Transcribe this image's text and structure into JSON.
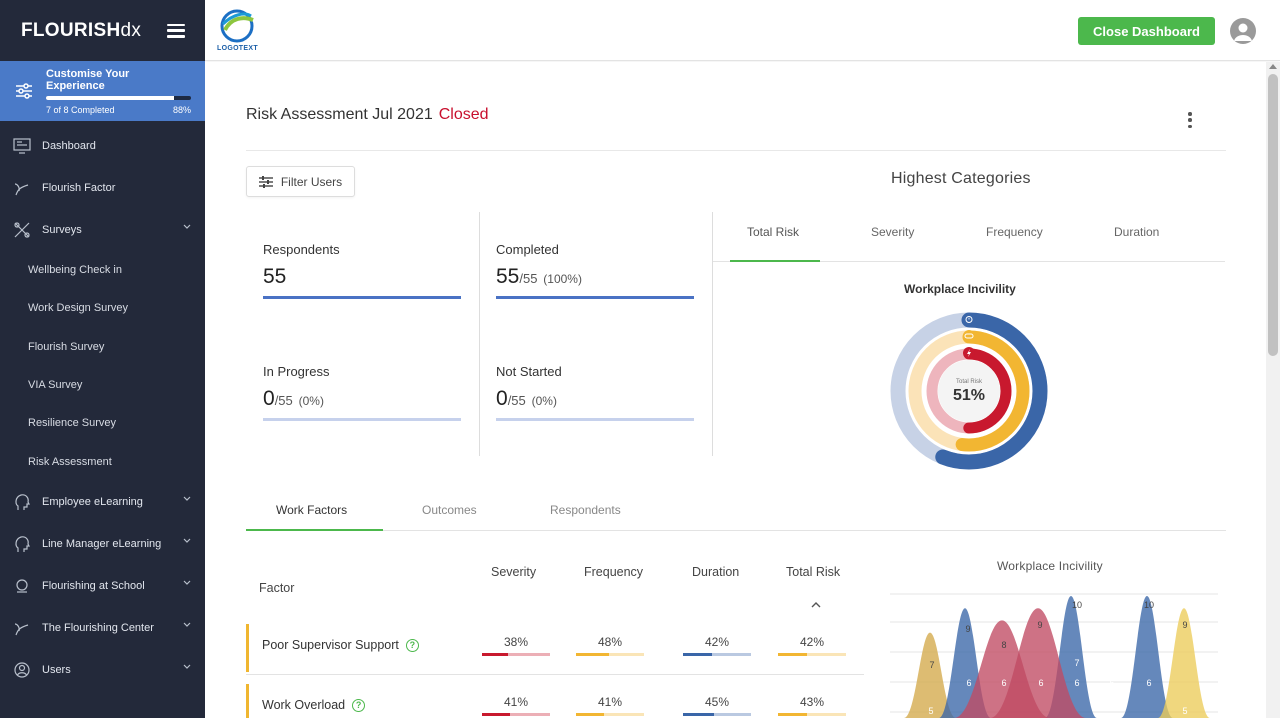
{
  "brand": {
    "bold": "FLOURISH",
    "thin": "dx"
  },
  "customise": {
    "title": "Customise Your Experience",
    "progress_text": "7 of 8 Completed",
    "percent_text": "88%",
    "progress": 0.88
  },
  "sidebar": {
    "items": [
      {
        "label": "Dashboard",
        "icon": "dashboard-icon"
      },
      {
        "label": "Flourish Factor",
        "icon": "flourish-factor-icon"
      },
      {
        "label": "Surveys",
        "icon": "surveys-icon"
      }
    ],
    "survey_subitems": [
      "Wellbeing Check in",
      "Work Design Survey",
      "Flourish Survey",
      "VIA Survey",
      "Resilience Survey",
      "Risk Assessment"
    ],
    "items_bottom": [
      {
        "label": "Employee eLearning",
        "icon": "head-icon"
      },
      {
        "label": "Line Manager eLearning",
        "icon": "head-icon"
      },
      {
        "label": "Flourishing at School",
        "icon": "school-icon"
      },
      {
        "label": "The Flourishing Center",
        "icon": "center-icon"
      },
      {
        "label": "Users",
        "icon": "users-icon"
      }
    ]
  },
  "topbar": {
    "logo_text": "LOGOTEXT",
    "close_label": "Close Dashboard"
  },
  "page": {
    "title": "Risk Assessment Jul 2021",
    "status": "Closed",
    "filter_label": "Filter Users"
  },
  "stats": {
    "respondents": {
      "label": "Respondents",
      "value": "55"
    },
    "completed": {
      "label": "Completed",
      "value": "55",
      "sub": "/55",
      "pct": "(100%)"
    },
    "in_progress": {
      "label": "In Progress",
      "value": "0",
      "sub": "/55",
      "pct": "(0%)"
    },
    "not_started": {
      "label": "Not Started",
      "value": "0",
      "sub": "/55",
      "pct": "(0%)"
    }
  },
  "highest": {
    "title": "Highest Categories",
    "tabs": [
      "Total Risk",
      "Severity",
      "Frequency",
      "Duration"
    ],
    "donut_title": "Workplace Incivility",
    "center_label": "Total Risk",
    "center_value": "51%",
    "rings": [
      {
        "name": "duration",
        "value": 0.56,
        "color": "#3a66a8",
        "track": "#c7d2e6",
        "icon": "stopwatch-icon"
      },
      {
        "name": "frequency",
        "value": 0.52,
        "color": "#f2b632",
        "track": "#fbe3b8",
        "icon": "link-icon"
      },
      {
        "name": "severity",
        "value": 0.5,
        "color": "#c8192e",
        "track": "#eeb5bd",
        "icon": "lightning-icon"
      }
    ]
  },
  "bottom_tabs": [
    "Work Factors",
    "Outcomes",
    "Respondents"
  ],
  "table": {
    "headers": {
      "factor": "Factor",
      "severity": "Severity",
      "frequency": "Frequency",
      "duration": "Duration",
      "total": "Total Risk"
    },
    "rows": [
      {
        "factor": "Poor Supervisor Support",
        "severity": "38%",
        "frequency": "48%",
        "duration": "42%",
        "total": "42%",
        "sv": 0.38,
        "fv": 0.48,
        "dv": 0.42,
        "tv": 0.42
      },
      {
        "factor": "Work Overload",
        "severity": "41%",
        "frequency": "41%",
        "duration": "45%",
        "total": "43%",
        "sv": 0.41,
        "fv": 0.41,
        "dv": 0.45,
        "tv": 0.43
      }
    ],
    "colors": {
      "severity": "#c8192e",
      "frequency": "#f2b632",
      "duration": "#3a66a8",
      "total": "#f2b632"
    }
  },
  "chart_data": {
    "type": "area",
    "title": "Workplace Incivility",
    "labels": [
      "7",
      "9",
      "6",
      "8",
      "9",
      "6",
      "10",
      "7",
      "6",
      "10",
      "6",
      "9",
      "5",
      "5",
      "6",
      "6"
    ],
    "series": [
      {
        "color": "#d4a94a",
        "peaks": [
          7
        ]
      },
      {
        "color": "#3a66a8",
        "peaks": [
          9,
          10,
          10
        ]
      },
      {
        "color": "#c04a63",
        "peaks": [
          8,
          9
        ]
      },
      {
        "color": "#eccc5a",
        "peaks": [
          9
        ]
      }
    ]
  }
}
